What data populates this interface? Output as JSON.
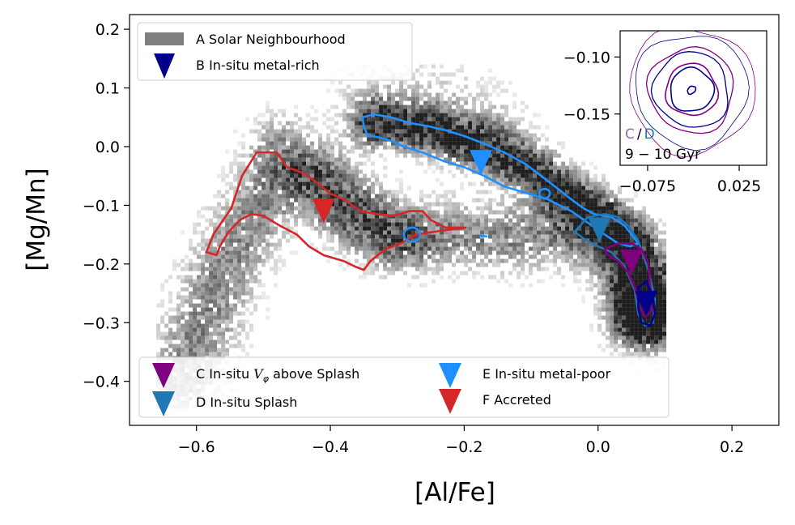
{
  "chart_data": [
    {
      "type": "scatter",
      "subtype": "2d-histogram with density contours and median markers",
      "xlabel": "[Al/Fe]",
      "ylabel": "[Mg/Mn]",
      "xlim": [
        -0.7,
        0.27
      ],
      "ylim": [
        -0.475,
        0.225
      ],
      "xticks": [
        -0.6,
        -0.4,
        -0.2,
        0.0,
        0.2
      ],
      "xtick_labels": [
        "−0.6",
        "−0.4",
        "−0.2",
        "0.0",
        "0.2"
      ],
      "yticks": [
        -0.4,
        -0.3,
        -0.2,
        -0.1,
        0.0,
        0.1,
        0.2
      ],
      "ytick_labels": [
        "−0.4",
        "−0.3",
        "−0.2",
        "−0.1",
        "0.0",
        "0.1",
        "0.2"
      ],
      "legend_top": {
        "placement": "upper left",
        "entries": [
          {
            "id": "A",
            "label": "A Solar Neighbourhood",
            "marker": "patch",
            "color": "#808080"
          },
          {
            "id": "B",
            "label": "B In-situ metal-rich",
            "marker": "triangle-down",
            "color": "#00008b"
          }
        ]
      },
      "legend_bottom": {
        "placement": "lower left",
        "entries": [
          {
            "id": "C",
            "label_prefix": "C In-situ ",
            "label_math": "V",
            "label_sub": "φ",
            "label_suffix": " above Splash",
            "marker": "triangle-down",
            "color": "#800080"
          },
          {
            "id": "D",
            "label": "D In-situ Splash",
            "marker": "triangle-down",
            "color": "#1f77b4"
          },
          {
            "id": "E",
            "label": "E In-situ metal-poor",
            "marker": "triangle-down",
            "color": "#1e90ff"
          },
          {
            "id": "F",
            "label": "F Accreted",
            "marker": "triangle-down",
            "color": "#d62728"
          }
        ]
      },
      "medians": [
        {
          "id": "B",
          "x": 0.072,
          "y": -0.265,
          "color": "#00008b"
        },
        {
          "id": "C",
          "x": 0.05,
          "y": -0.195,
          "color": "#800080"
        },
        {
          "id": "D",
          "x": 0.002,
          "y": -0.14,
          "color": "#1f77b4"
        },
        {
          "id": "E",
          "x": -0.175,
          "y": -0.025,
          "color": "#1e90ff"
        },
        {
          "id": "F",
          "x": -0.41,
          "y": -0.108,
          "color": "#d62728"
        }
      ],
      "contours": [
        {
          "id": "F",
          "color": "#d62728",
          "points": [
            [
              -0.57,
              -0.185
            ],
            [
              -0.585,
              -0.18
            ],
            [
              -0.575,
              -0.15
            ],
            [
              -0.548,
              -0.105
            ],
            [
              -0.532,
              -0.05
            ],
            [
              -0.51,
              -0.01
            ],
            [
              -0.48,
              -0.01
            ],
            [
              -0.465,
              -0.035
            ],
            [
              -0.44,
              -0.045
            ],
            [
              -0.422,
              -0.06
            ],
            [
              -0.4,
              -0.08
            ],
            [
              -0.38,
              -0.09
            ],
            [
              -0.355,
              -0.11
            ],
            [
              -0.33,
              -0.115
            ],
            [
              -0.305,
              -0.118
            ],
            [
              -0.282,
              -0.11
            ],
            [
              -0.262,
              -0.11
            ],
            [
              -0.25,
              -0.125
            ],
            [
              -0.228,
              -0.138
            ],
            [
              -0.198,
              -0.138
            ],
            [
              -0.232,
              -0.143
            ],
            [
              -0.272,
              -0.15
            ],
            [
              -0.295,
              -0.165
            ],
            [
              -0.318,
              -0.175
            ],
            [
              -0.34,
              -0.195
            ],
            [
              -0.35,
              -0.21
            ],
            [
              -0.362,
              -0.205
            ],
            [
              -0.38,
              -0.195
            ],
            [
              -0.41,
              -0.185
            ],
            [
              -0.432,
              -0.17
            ],
            [
              -0.45,
              -0.15
            ],
            [
              -0.475,
              -0.135
            ],
            [
              -0.5,
              -0.118
            ],
            [
              -0.518,
              -0.115
            ],
            [
              -0.535,
              -0.125
            ],
            [
              -0.552,
              -0.145
            ],
            [
              -0.565,
              -0.17
            ],
            [
              -0.57,
              -0.185
            ]
          ]
        },
        {
          "id": "F-island",
          "color": "#1e90ff",
          "center": [
            -0.278,
            -0.15
          ],
          "r": [
            0.012,
            0.012
          ]
        },
        {
          "id": "E",
          "color": "#1e90ff",
          "points": [
            [
              -0.35,
              0.035
            ],
            [
              -0.352,
              0.05
            ],
            [
              -0.335,
              0.055
            ],
            [
              -0.31,
              0.05
            ],
            [
              -0.28,
              0.04
            ],
            [
              -0.255,
              0.035
            ],
            [
              -0.228,
              0.028
            ],
            [
              -0.2,
              0.018
            ],
            [
              -0.17,
              0.005
            ],
            [
              -0.14,
              -0.01
            ],
            [
              -0.108,
              -0.03
            ],
            [
              -0.085,
              -0.05
            ],
            [
              -0.062,
              -0.07
            ],
            [
              -0.04,
              -0.09
            ],
            [
              -0.022,
              -0.105
            ],
            [
              -0.005,
              -0.115
            ],
            [
              0.02,
              -0.12
            ],
            [
              0.04,
              -0.135
            ],
            [
              0.05,
              -0.15
            ],
            [
              0.06,
              -0.165
            ],
            [
              0.048,
              -0.17
            ],
            [
              0.03,
              -0.165
            ],
            [
              0.01,
              -0.15
            ],
            [
              -0.015,
              -0.13
            ],
            [
              -0.04,
              -0.11
            ],
            [
              -0.075,
              -0.09
            ],
            [
              -0.105,
              -0.08
            ],
            [
              -0.14,
              -0.068
            ],
            [
              -0.17,
              -0.05
            ],
            [
              -0.2,
              -0.035
            ],
            [
              -0.23,
              -0.025
            ],
            [
              -0.262,
              -0.01
            ],
            [
              -0.29,
              0.0
            ],
            [
              -0.31,
              0.01
            ],
            [
              -0.325,
              0.015
            ],
            [
              -0.345,
              0.02
            ],
            [
              -0.35,
              0.035
            ]
          ]
        },
        {
          "id": "E-island",
          "color": "#1e90ff",
          "center": [
            -0.08,
            -0.08
          ],
          "r": [
            0.008,
            0.008
          ]
        },
        {
          "id": "D",
          "color": "#1f77b4",
          "points": [
            [
              -0.035,
              -0.145
            ],
            [
              -0.015,
              -0.12
            ],
            [
              0.01,
              -0.115
            ],
            [
              0.03,
              -0.12
            ],
            [
              0.045,
              -0.135
            ],
            [
              0.06,
              -0.16
            ],
            [
              0.075,
              -0.21
            ],
            [
              0.085,
              -0.26
            ],
            [
              0.082,
              -0.3
            ],
            [
              0.07,
              -0.305
            ],
            [
              0.06,
              -0.285
            ],
            [
              0.055,
              -0.245
            ],
            [
              0.04,
              -0.205
            ],
            [
              0.02,
              -0.18
            ],
            [
              0.0,
              -0.17
            ],
            [
              -0.02,
              -0.158
            ],
            [
              -0.035,
              -0.145
            ]
          ]
        },
        {
          "id": "C",
          "color": "#800080",
          "points": [
            [
              0.01,
              -0.175
            ],
            [
              0.03,
              -0.165
            ],
            [
              0.05,
              -0.165
            ],
            [
              0.065,
              -0.175
            ],
            [
              0.075,
              -0.2
            ],
            [
              0.078,
              -0.24
            ],
            [
              0.08,
              -0.28
            ],
            [
              0.07,
              -0.29
            ],
            [
              0.062,
              -0.272
            ],
            [
              0.055,
              -0.24
            ],
            [
              0.045,
              -0.215
            ],
            [
              0.03,
              -0.195
            ],
            [
              0.015,
              -0.185
            ],
            [
              0.01,
              -0.175
            ]
          ]
        },
        {
          "id": "B",
          "color": "#00008b",
          "points": [
            [
              0.06,
              -0.24
            ],
            [
              0.072,
              -0.23
            ],
            [
              0.082,
              -0.255
            ],
            [
              0.085,
              -0.285
            ],
            [
              0.078,
              -0.305
            ],
            [
              0.065,
              -0.3
            ],
            [
              0.06,
              -0.275
            ],
            [
              0.06,
              -0.24
            ]
          ]
        }
      ],
      "histogram_ridges": [
        {
          "points": [
            [
              -0.62,
              -0.395
            ],
            [
              -0.6,
              -0.33
            ],
            [
              -0.56,
              -0.215
            ],
            [
              -0.52,
              -0.13
            ],
            [
              -0.48,
              -0.06
            ],
            [
              -0.42,
              -0.06
            ],
            [
              -0.36,
              -0.12
            ],
            [
              -0.3,
              -0.15
            ],
            [
              -0.22,
              -0.15
            ],
            [
              -0.15,
              -0.155
            ],
            [
              -0.05,
              -0.15
            ],
            [
              0.0,
              -0.16
            ],
            [
              0.04,
              -0.19
            ],
            [
              0.065,
              -0.24
            ],
            [
              0.072,
              -0.29
            ]
          ],
          "spread": 0.04,
          "weight": 0.5
        },
        {
          "points": [
            [
              -0.33,
              0.04
            ],
            [
              -0.25,
              0.03
            ],
            [
              -0.17,
              0.0
            ],
            [
              -0.1,
              -0.04
            ],
            [
              -0.05,
              -0.08
            ],
            [
              0.0,
              -0.12
            ],
            [
              0.04,
              -0.16
            ],
            [
              0.06,
              -0.21
            ],
            [
              0.072,
              -0.27
            ],
            [
              0.072,
              -0.3
            ]
          ],
          "spread": 0.028,
          "weight": 1.0
        },
        {
          "points": [
            [
              -0.47,
              0.01
            ],
            [
              -0.44,
              -0.04
            ],
            [
              -0.4,
              -0.08
            ],
            [
              -0.35,
              -0.12
            ],
            [
              -0.3,
              -0.16
            ]
          ],
          "spread": 0.035,
          "weight": 0.35
        },
        {
          "points": [
            [
              -0.33,
              0.11
            ],
            [
              -0.28,
              0.1
            ],
            [
              -0.22,
              0.08
            ],
            [
              -0.16,
              0.05
            ]
          ],
          "spread": 0.045,
          "weight": 0.18
        }
      ]
    },
    {
      "type": "line",
      "subtype": "inset density contours",
      "xlim": [
        -0.105,
        0.055
      ],
      "ylim": [
        -0.195,
        -0.077
      ],
      "xticks": [
        -0.075,
        0.025
      ],
      "xtick_labels": [
        "−0.075",
        "0.025"
      ],
      "yticks": [
        -0.1,
        -0.15
      ],
      "ytick_labels": [
        "−0.10",
        "−0.15"
      ],
      "label_c": "C",
      "label_sep": "/",
      "label_d": "D",
      "label_age": "9 − 10 Gyr",
      "center": [
        -0.027,
        -0.129
      ],
      "rings": [
        {
          "color": "#800080",
          "r": [
            0.068,
            0.056
          ],
          "width": 0.8
        },
        {
          "color": "#00008b",
          "r": [
            0.061,
            0.05
          ],
          "width": 0.8
        },
        {
          "color": "#800080",
          "r": [
            0.046,
            0.038
          ],
          "width": 1.3
        },
        {
          "color": "#00008b",
          "r": [
            0.04,
            0.034
          ],
          "width": 1.3
        },
        {
          "color": "#800080",
          "r": [
            0.028,
            0.023
          ],
          "width": 1.6
        },
        {
          "color": "#00008b",
          "r": [
            0.024,
            0.019
          ],
          "width": 1.6
        },
        {
          "color": "#00008b",
          "r": [
            0.005,
            0.003
          ],
          "width": 1.6
        }
      ]
    }
  ]
}
